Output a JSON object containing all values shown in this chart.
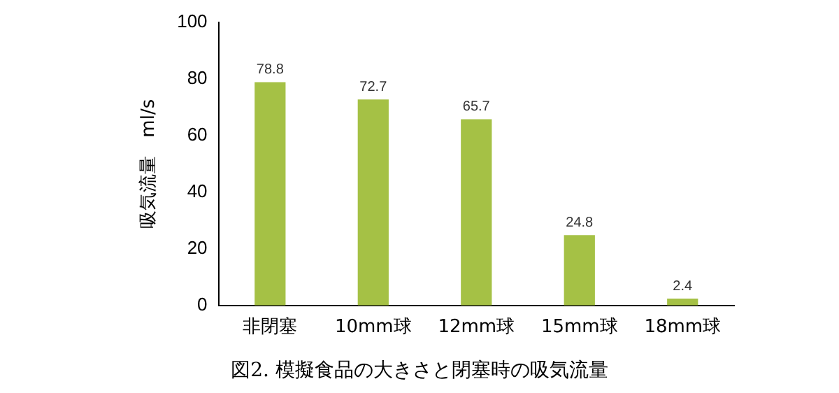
{
  "chart_data": {
    "type": "bar",
    "ylabel": "吸気流量　ml/s",
    "categories": [
      "非閉塞",
      "10mm球",
      "12mm球",
      "15mm球",
      "18mm球"
    ],
    "values": [
      78.8,
      72.7,
      65.7,
      24.8,
      2.4
    ],
    "color": "#a5c145",
    "ylim": [
      0,
      100
    ],
    "yticks": [
      0,
      20,
      40,
      60,
      80,
      100
    ],
    "grid": false,
    "legend": false,
    "data_labels": true,
    "annotations": [
      "図2.  模擬食品の大きさと閉塞時の吸気流量"
    ]
  }
}
